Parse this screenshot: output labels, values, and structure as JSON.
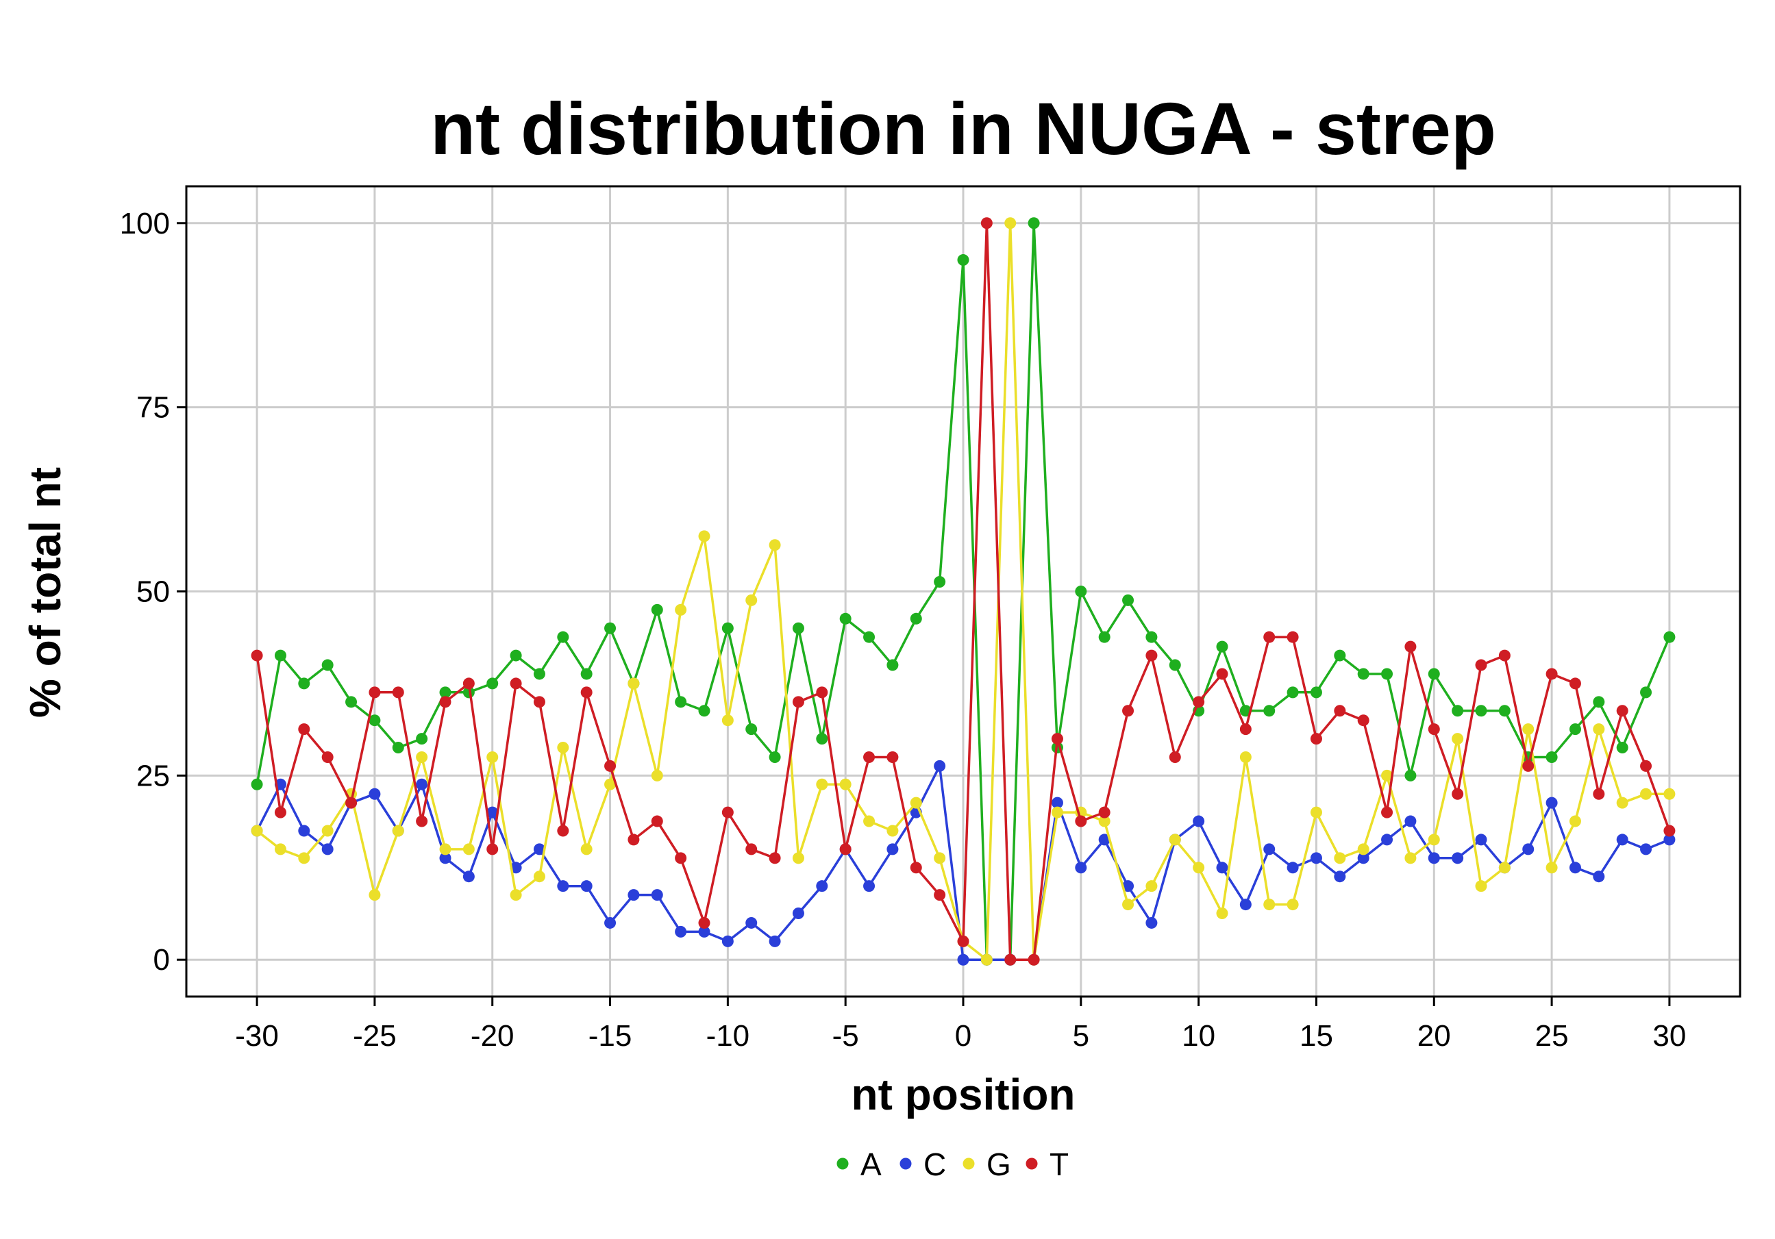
{
  "chart_data": {
    "type": "line",
    "title": "nt distribution in NUGA - strep",
    "xlabel": "nt position",
    "ylabel": "% of total nt",
    "xlim": [
      -33,
      33
    ],
    "ylim": [
      -5,
      105
    ],
    "x_ticks": [
      -30,
      -25,
      -20,
      -15,
      -10,
      -5,
      0,
      5,
      10,
      15,
      20,
      25,
      30
    ],
    "x_tick_labels": [
      "-30",
      "-25",
      "-20",
      "-15",
      "-10",
      "-5",
      "0",
      "5",
      "10",
      "15",
      "20",
      "25",
      "30"
    ],
    "y_ticks": [
      0,
      25,
      50,
      75,
      100
    ],
    "y_tick_labels": [
      "0",
      "25",
      "50",
      "75",
      "100"
    ],
    "grid": true,
    "legend_position": "bottom",
    "x": [
      -30,
      -29,
      -28,
      -27,
      -26,
      -25,
      -24,
      -23,
      -22,
      -21,
      -20,
      -19,
      -18,
      -17,
      -16,
      -15,
      -14,
      -13,
      -12,
      -11,
      -10,
      -9,
      -8,
      -7,
      -6,
      -5,
      -4,
      -3,
      -2,
      -1,
      0,
      1,
      2,
      3,
      4,
      5,
      6,
      7,
      8,
      9,
      10,
      11,
      12,
      13,
      14,
      15,
      16,
      17,
      18,
      19,
      20,
      21,
      22,
      23,
      24,
      25,
      26,
      27,
      28,
      29,
      30
    ],
    "series": [
      {
        "name": "A",
        "color": "#1faf1f",
        "values": [
          23.8,
          41.3,
          37.5,
          40.0,
          35.0,
          32.5,
          28.8,
          30.0,
          36.3,
          36.3,
          37.5,
          41.3,
          38.8,
          43.8,
          38.8,
          45.0,
          37.5,
          47.5,
          35.0,
          33.8,
          45.0,
          31.3,
          27.5,
          45.0,
          30.0,
          46.3,
          43.8,
          40.0,
          46.3,
          51.3,
          95.0,
          0,
          0,
          100,
          28.8,
          50.0,
          43.8,
          48.8,
          43.8,
          40.0,
          33.8,
          42.5,
          33.8,
          33.8,
          36.3,
          36.3,
          41.3,
          38.8,
          38.8,
          25.0,
          38.8,
          33.8,
          33.8,
          33.8,
          27.5,
          27.5,
          31.3,
          35.0,
          28.8,
          36.3,
          43.8
        ]
      },
      {
        "name": "C",
        "color": "#2a3fd9",
        "values": [
          17.5,
          23.8,
          17.5,
          15.0,
          21.3,
          22.5,
          17.5,
          23.8,
          13.8,
          11.3,
          20.0,
          12.5,
          15.0,
          10.0,
          10.0,
          5.0,
          8.8,
          8.8,
          3.8,
          3.8,
          2.5,
          5.0,
          2.5,
          6.3,
          10.0,
          15.0,
          10.0,
          15.0,
          20.0,
          26.3,
          0,
          0,
          0,
          0,
          21.3,
          12.5,
          16.3,
          10.0,
          5.0,
          16.3,
          18.8,
          12.5,
          7.5,
          15.0,
          12.5,
          13.8,
          11.3,
          13.8,
          16.3,
          18.8,
          13.8,
          13.8,
          16.3,
          12.5,
          15.0,
          21.3,
          12.5,
          11.3,
          16.3,
          15.0,
          16.3
        ]
      },
      {
        "name": "G",
        "color": "#ebdf2a",
        "values": [
          17.5,
          15.0,
          13.8,
          17.5,
          22.5,
          8.8,
          17.5,
          27.5,
          15.0,
          15.0,
          27.5,
          8.8,
          11.3,
          28.8,
          15.0,
          23.8,
          37.5,
          25.0,
          47.5,
          57.5,
          32.5,
          48.8,
          56.3,
          13.8,
          23.8,
          23.8,
          18.8,
          17.5,
          21.3,
          13.8,
          2.5,
          0,
          100,
          0,
          20.0,
          20.0,
          18.8,
          7.5,
          10.0,
          16.3,
          12.5,
          6.3,
          27.5,
          7.5,
          7.5,
          20.0,
          13.8,
          15.0,
          25.0,
          13.8,
          16.3,
          30.0,
          10.0,
          12.5,
          31.3,
          12.5,
          18.8,
          31.3,
          21.3,
          22.5,
          22.5
        ]
      },
      {
        "name": "T",
        "color": "#cf1d24",
        "values": [
          41.3,
          20.0,
          31.3,
          27.5,
          21.3,
          36.3,
          36.3,
          18.8,
          35.0,
          37.5,
          15.0,
          37.5,
          35.0,
          17.5,
          36.3,
          26.3,
          16.3,
          18.8,
          13.8,
          5.0,
          20.0,
          15.0,
          13.8,
          35.0,
          36.3,
          15.0,
          27.5,
          27.5,
          12.5,
          8.8,
          2.5,
          100,
          0,
          0,
          30.0,
          18.8,
          20.0,
          33.8,
          41.3,
          27.5,
          35.0,
          38.8,
          31.3,
          43.8,
          43.8,
          30.0,
          33.8,
          32.5,
          20.0,
          42.5,
          31.3,
          22.5,
          40.0,
          41.3,
          26.3,
          38.8,
          37.5,
          22.5,
          33.8,
          26.3,
          17.5
        ]
      }
    ]
  }
}
